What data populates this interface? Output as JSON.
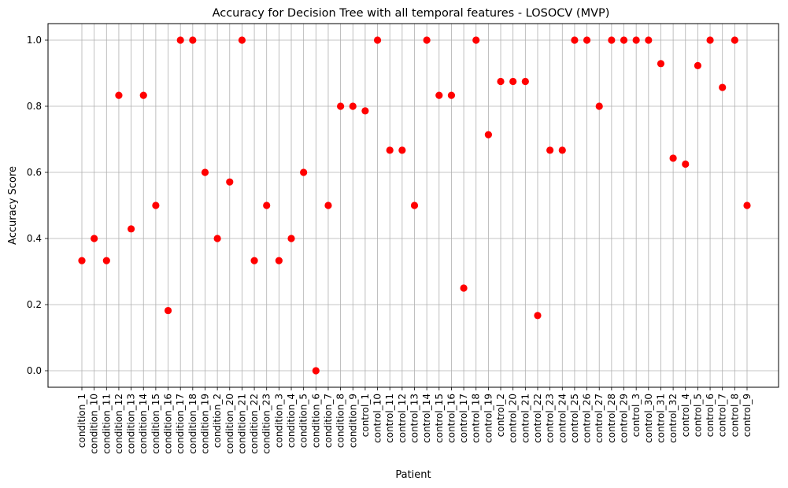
{
  "chart_data": {
    "type": "scatter",
    "title": "Accuracy for Decision Tree with all temporal features - LOSOCV (MVP)",
    "xlabel": "Patient",
    "ylabel": "Accuracy Score",
    "ylim": [
      -0.05,
      1.05
    ],
    "yticks": [
      "0.0",
      "0.2",
      "0.4",
      "0.6",
      "0.8",
      "1.0"
    ],
    "grid": true,
    "marker_color": "#ff0000",
    "categories": [
      "condition_1",
      "condition_10",
      "condition_11",
      "condition_12",
      "condition_13",
      "condition_14",
      "condition_15",
      "condition_16",
      "condition_17",
      "condition_18",
      "condition_19",
      "condition_2",
      "condition_20",
      "condition_21",
      "condition_22",
      "condition_23",
      "condition_3",
      "condition_4",
      "condition_5",
      "condition_6",
      "condition_7",
      "condition_8",
      "condition_9",
      "control_1",
      "control_10",
      "control_11",
      "control_12",
      "control_13",
      "control_14",
      "control_15",
      "control_16",
      "control_17",
      "control_18",
      "control_19",
      "control_2",
      "control_20",
      "control_21",
      "control_22",
      "control_23",
      "control_24",
      "control_25",
      "control_26",
      "control_27",
      "control_28",
      "control_29",
      "control_3",
      "control_30",
      "control_31",
      "control_32",
      "control_4",
      "control_5",
      "control_6",
      "control_7",
      "control_8",
      "control_9"
    ],
    "values": [
      0.333,
      0.4,
      0.333,
      0.833,
      0.429,
      0.833,
      0.5,
      0.182,
      1.0,
      1.0,
      0.6,
      0.4,
      0.571,
      1.0,
      0.333,
      0.5,
      0.333,
      0.4,
      0.6,
      0.0,
      0.5,
      0.8,
      0.8,
      0.786,
      1.0,
      0.667,
      0.667,
      0.5,
      1.0,
      0.833,
      0.833,
      0.25,
      1.0,
      0.714,
      0.875,
      0.875,
      0.875,
      0.167,
      0.667,
      0.667,
      1.0,
      1.0,
      0.8,
      1.0,
      1.0,
      1.0,
      1.0,
      0.929,
      0.643,
      0.625,
      0.923,
      1.0,
      0.857,
      1.0,
      0.5
    ]
  }
}
